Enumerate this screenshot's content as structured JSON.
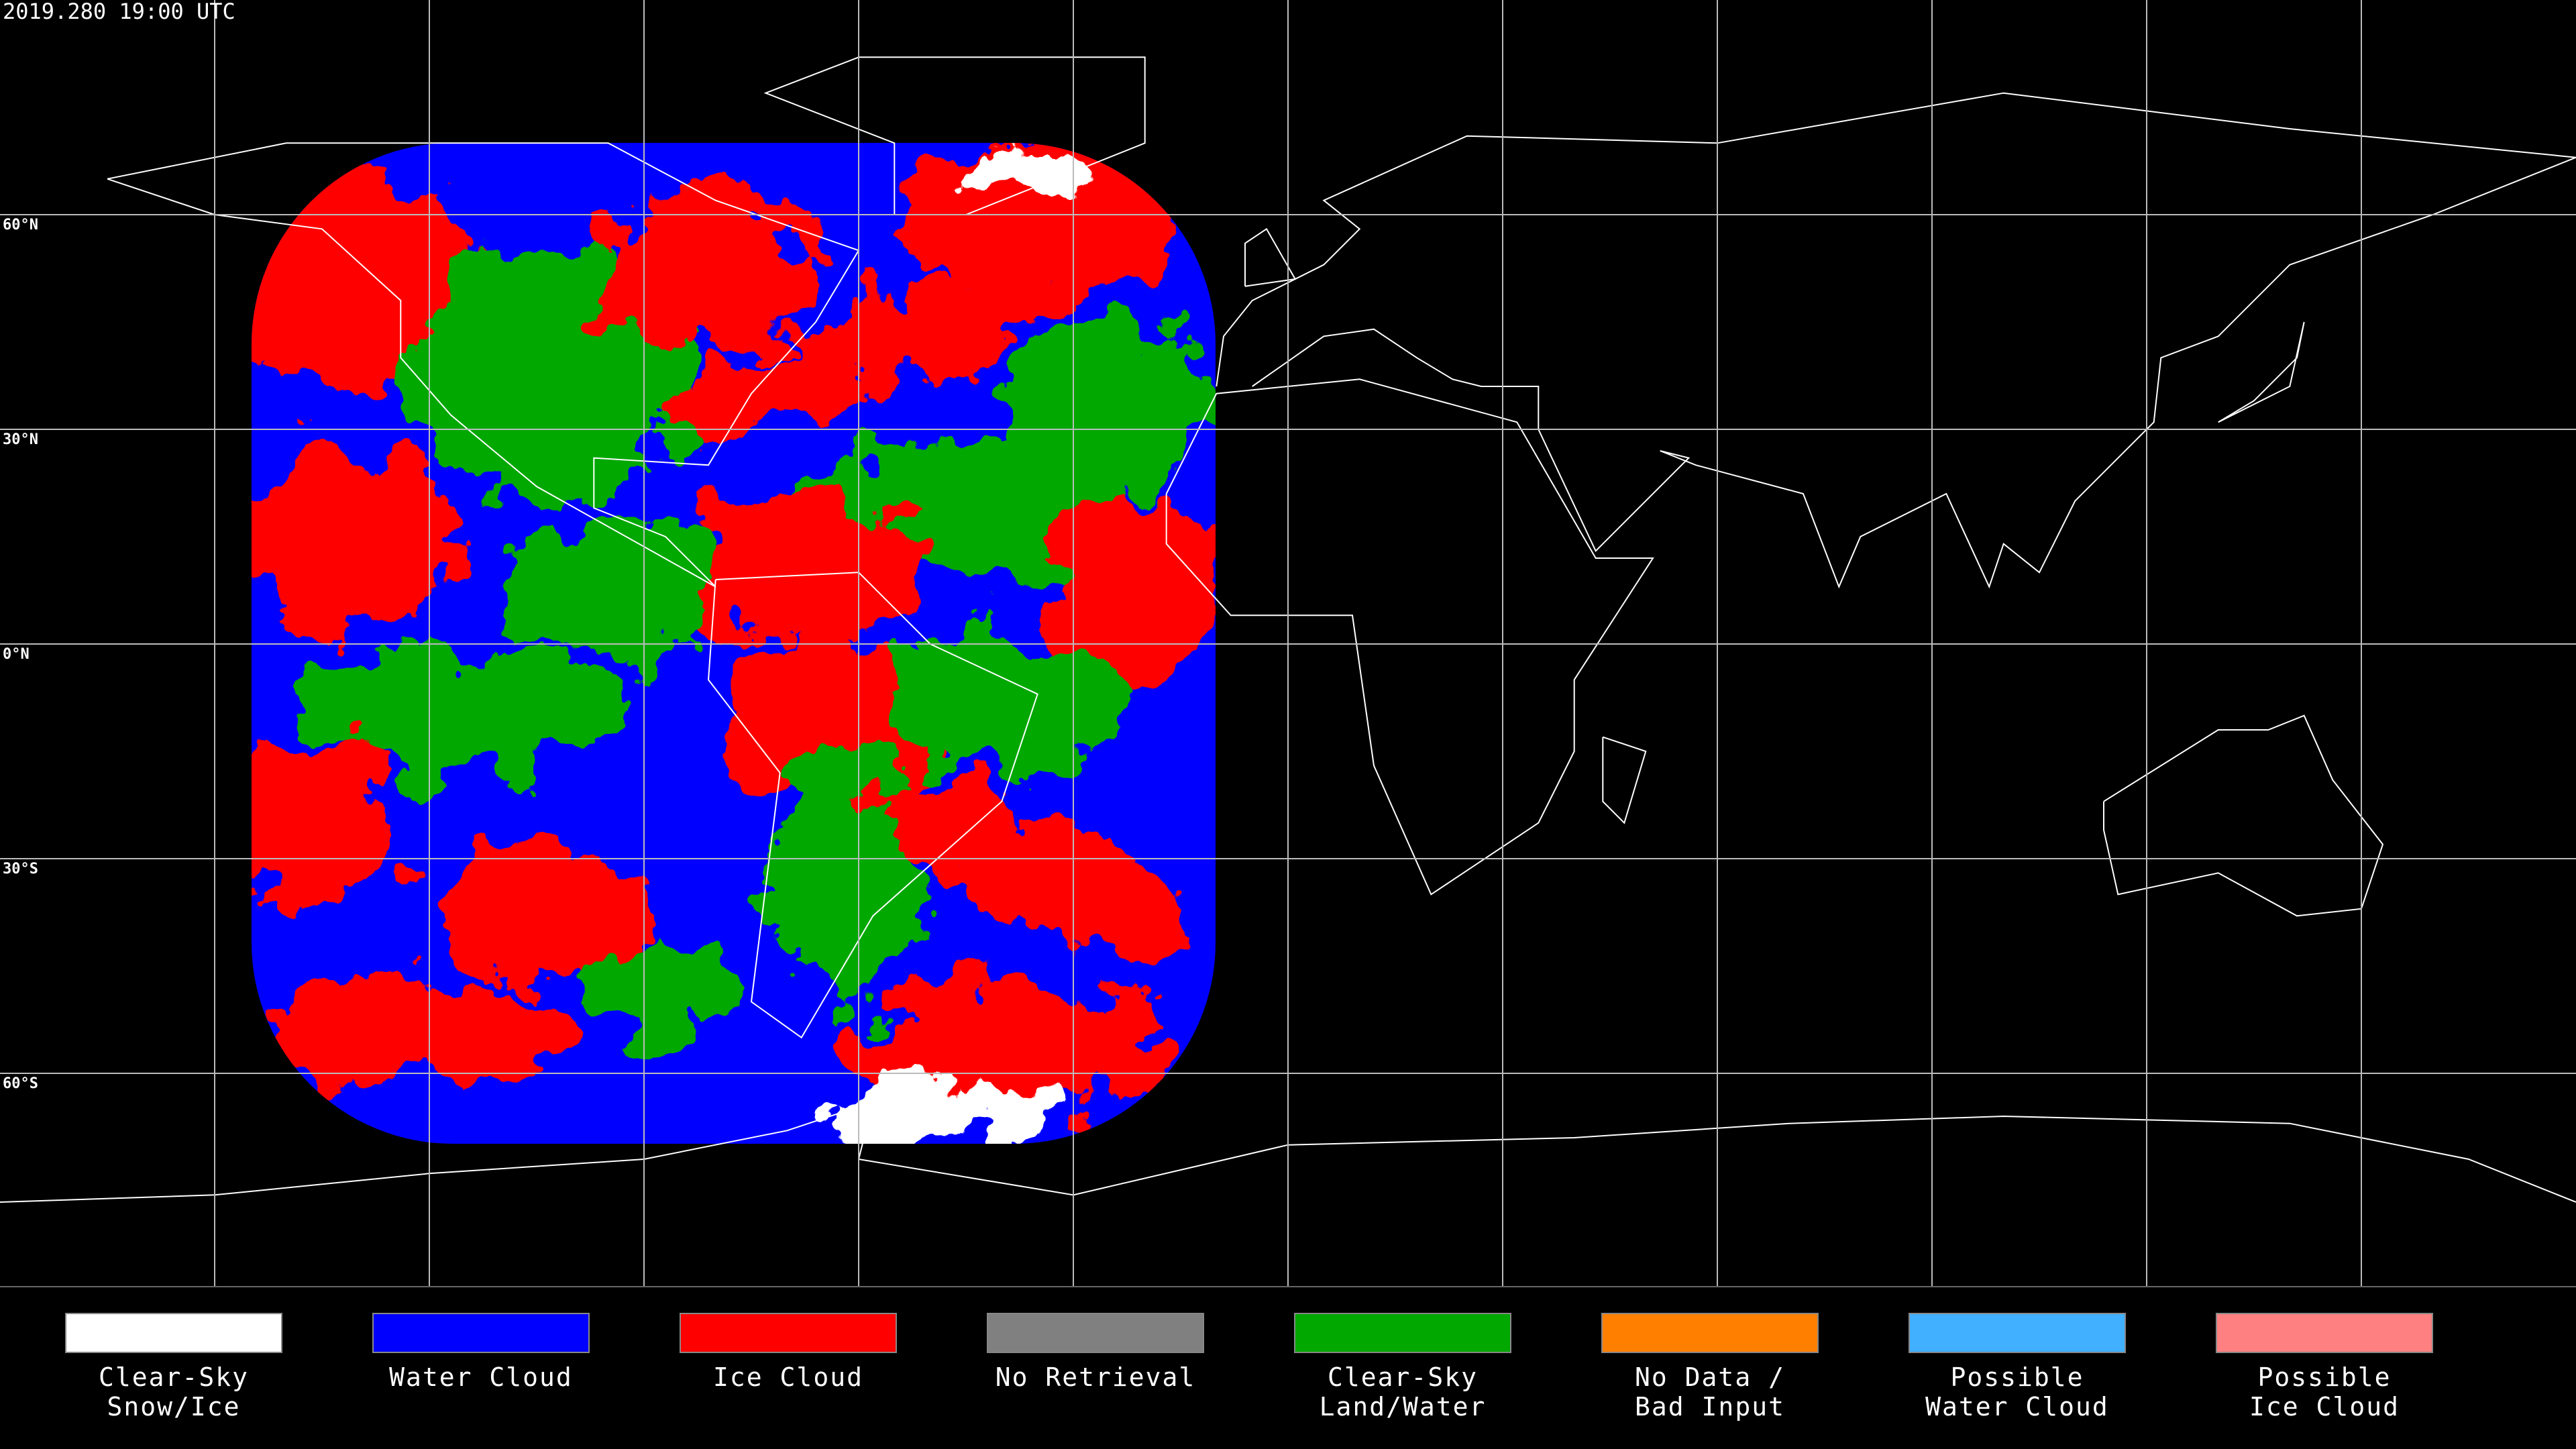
{
  "title": "2019.280 19:00 UTC",
  "latitude_labels": [
    "60°N",
    "30°N",
    "0°N",
    "30°S",
    "60°S"
  ],
  "legend": [
    {
      "lines": [
        "Clear-Sky",
        "Snow/Ice"
      ],
      "color": "#ffffff"
    },
    {
      "lines": [
        "Water Cloud"
      ],
      "color": "#0000ff"
    },
    {
      "lines": [
        "Ice Cloud"
      ],
      "color": "#ff0000"
    },
    {
      "lines": [
        "No Retrieval"
      ],
      "color": "#808080"
    },
    {
      "lines": [
        "Clear-Sky",
        "Land/Water"
      ],
      "color": "#00a800"
    },
    {
      "lines": [
        "No Data /",
        "Bad Input"
      ],
      "color": "#ff8000"
    },
    {
      "lines": [
        "Possible",
        "Water Cloud"
      ],
      "color": "#40b0ff"
    },
    {
      "lines": [
        "Possible",
        "Ice Cloud"
      ],
      "color": "#ff8080"
    }
  ]
}
